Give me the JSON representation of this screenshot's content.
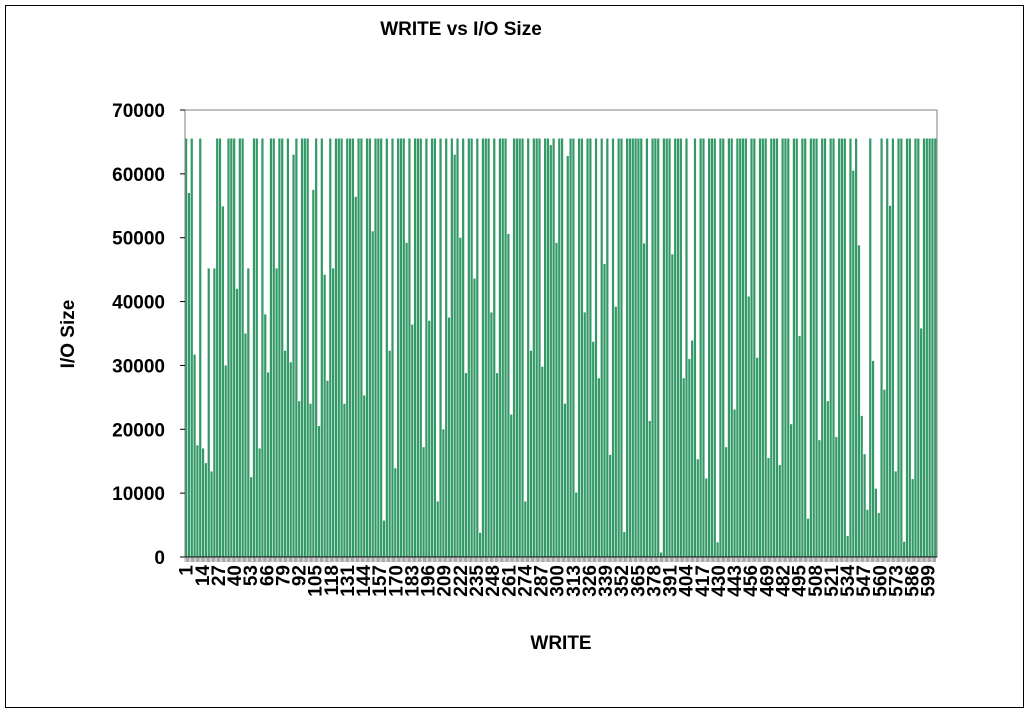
{
  "chart_data": {
    "type": "bar",
    "title": "WRITE vs I/O Size",
    "xlabel": "WRITE",
    "ylabel": "I/O Size",
    "ylim": [
      0,
      70000
    ],
    "yticks": [
      0,
      10000,
      20000,
      30000,
      40000,
      50000,
      60000,
      70000
    ],
    "x_range": [
      1,
      606
    ],
    "x_tick_labels": [
      "1",
      "14",
      "27",
      "40",
      "53",
      "66",
      "79",
      "92",
      "105",
      "118",
      "131",
      "144",
      "157",
      "170",
      "183",
      "196",
      "209",
      "222",
      "235",
      "248",
      "261",
      "274",
      "287",
      "300",
      "313",
      "326",
      "339",
      "352",
      "365",
      "378",
      "391",
      "404",
      "417",
      "430",
      "443",
      "456",
      "469",
      "482",
      "495",
      "508",
      "521",
      "534",
      "547",
      "560",
      "573",
      "586",
      "599"
    ],
    "series": [
      {
        "color": "#339966",
        "values": [
          65536,
          57000,
          65536,
          31700,
          17500,
          65536,
          17000,
          14700,
          45200,
          13400,
          45200,
          65536,
          65536,
          54900,
          30000,
          65536,
          65536,
          65536,
          42000,
          65536,
          65536,
          35000,
          45200,
          12500,
          65536,
          65536,
          17000,
          65536,
          38000,
          28900,
          65536,
          65536,
          45200,
          65536,
          65536,
          32300,
          65536,
          30500,
          63000,
          65536,
          24400,
          65536,
          65536,
          65536,
          24000,
          57500,
          65536,
          20500,
          65536,
          44200,
          27600,
          65536,
          45200,
          65536,
          65536,
          65536,
          24000,
          65536,
          65536,
          65536,
          56400,
          65536,
          65536,
          25300,
          65536,
          65536,
          51000,
          65536,
          65536,
          65536,
          5700,
          65536,
          32300,
          65536,
          13900,
          65536,
          65536,
          65536,
          49200,
          65536,
          36400,
          65536,
          65536,
          65536,
          17200,
          65536,
          37000,
          65536,
          65536,
          8700,
          65536,
          20000,
          65536,
          37500,
          65536,
          63000,
          65536,
          50000,
          65536,
          28800,
          65536,
          65536,
          43600,
          65536,
          3800,
          65536,
          65536,
          65536,
          38300,
          65536,
          28800,
          65536,
          65536,
          65536,
          50600,
          22300,
          65536,
          65536,
          65536,
          65536,
          8700,
          65536,
          32300,
          65536,
          65536,
          65536,
          29800,
          65536,
          65536,
          64500,
          65536,
          49200,
          65536,
          65536,
          24000,
          62800,
          65536,
          65536,
          10100,
          65536,
          65536,
          38300,
          65536,
          65536,
          33700,
          65536,
          28000,
          65536,
          45900,
          65536,
          16000,
          65536,
          39200,
          65536,
          65536,
          3900,
          65536,
          65536,
          65536,
          65536,
          65536,
          65536,
          49100,
          65536,
          21300,
          65536,
          65536,
          65536,
          700,
          65536,
          65536,
          65536,
          47400,
          65536,
          65536,
          65536,
          28000,
          65536,
          31000,
          33900,
          65536,
          15300,
          65536,
          65536,
          12300,
          65536,
          65536,
          65536,
          2300,
          65536,
          65536,
          17200,
          65536,
          65536,
          23100,
          65536,
          65536,
          65536,
          65536,
          40800,
          65536,
          65536,
          31200,
          65536,
          65536,
          65536,
          15500,
          65536,
          65536,
          65536,
          14400,
          65536,
          65536,
          65536,
          20800,
          65536,
          65536,
          34600,
          65536,
          65536,
          6000,
          65536,
          65536,
          65536,
          18300,
          65536,
          65536,
          24400,
          65536,
          65536,
          18800,
          65536,
          65536,
          65536,
          3300,
          65536,
          60500,
          65536,
          48800,
          22100,
          16100,
          7400,
          65536,
          30700,
          10700,
          6900,
          65536,
          26200,
          65536,
          55000,
          65536,
          13400,
          65536,
          65536,
          2400,
          65536,
          65536,
          12200,
          65536,
          65536,
          35800,
          65536,
          65536,
          65536,
          65536,
          65536
        ]
      }
    ],
    "grid": false,
    "legend": "none"
  }
}
